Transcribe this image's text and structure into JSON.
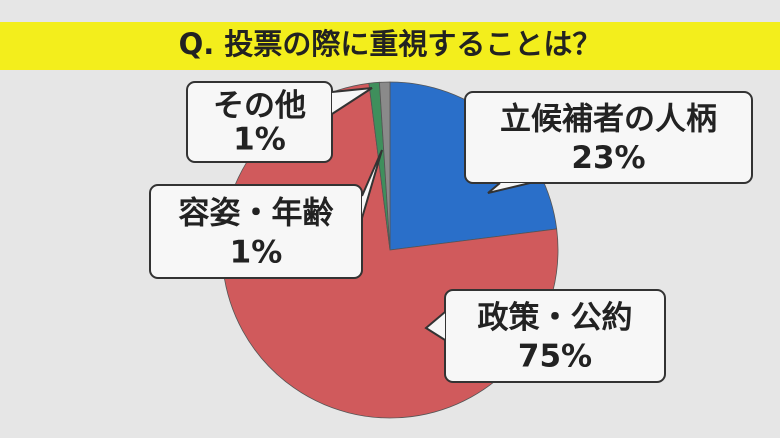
{
  "chart_data": {
    "type": "pie",
    "title": "Q. 投票の際に重視することは？",
    "categories": [
      "立候補者の人柄",
      "政策・公約",
      "容姿・年齢",
      "その他"
    ],
    "values": [
      23,
      75,
      1,
      1
    ],
    "value_labels": [
      "23%",
      "75%",
      "1%",
      "1%"
    ],
    "colors": [
      "#2a6fc9",
      "#d05a5c",
      "#3f8f5c",
      "#8a8a8a"
    ]
  }
}
